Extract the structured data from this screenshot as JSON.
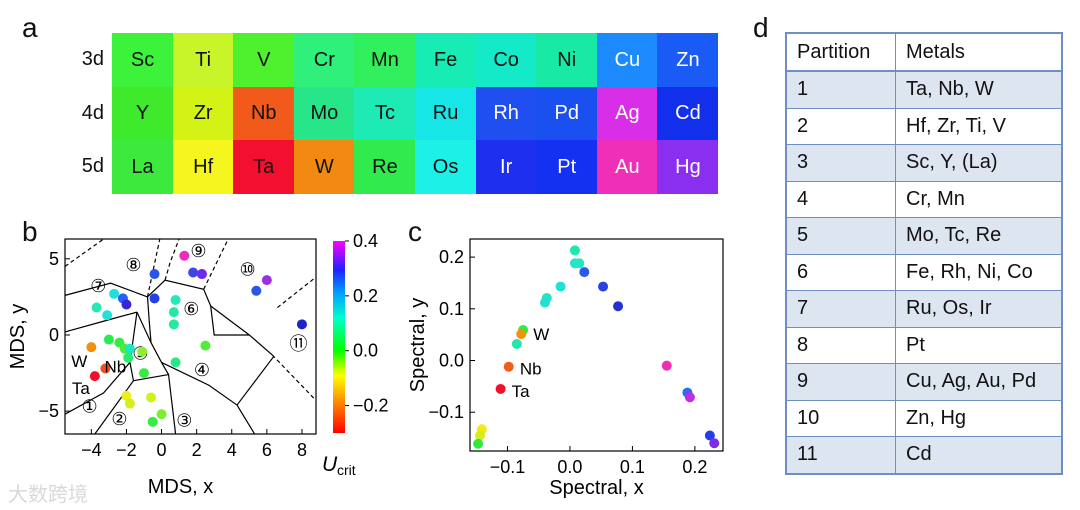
{
  "panels": {
    "a": "a",
    "b": "b",
    "c": "c",
    "d": "d"
  },
  "periodic_table": {
    "rows": [
      {
        "label": "3d",
        "cells": [
          {
            "sym": "Sc",
            "color": "#3cf23a"
          },
          {
            "sym": "Ti",
            "color": "#c8f52a"
          },
          {
            "sym": "V",
            "color": "#4ff02d"
          },
          {
            "sym": "Cr",
            "color": "#2ff07a"
          },
          {
            "sym": "Mn",
            "color": "#32ef5e"
          },
          {
            "sym": "Fe",
            "color": "#17ecb4"
          },
          {
            "sym": "Co",
            "color": "#14eac8"
          },
          {
            "sym": "Ni",
            "color": "#18eaa6"
          },
          {
            "sym": "Cu",
            "color": "#1e8aff"
          },
          {
            "sym": "Zn",
            "color": "#1a5af5"
          }
        ]
      },
      {
        "label": "4d",
        "cells": [
          {
            "sym": "Y",
            "color": "#3fe92b"
          },
          {
            "sym": "Zr",
            "color": "#d3f215"
          },
          {
            "sym": "Nb",
            "color": "#f25a1b"
          },
          {
            "sym": "Mo",
            "color": "#27e68a"
          },
          {
            "sym": "Tc",
            "color": "#1deab5"
          },
          {
            "sym": "Ru",
            "color": "#16e6e6"
          },
          {
            "sym": "Rh",
            "color": "#1f4ff0"
          },
          {
            "sym": "Pd",
            "color": "#1a4ff0"
          },
          {
            "sym": "Ag",
            "color": "#d92ee8"
          },
          {
            "sym": "Cd",
            "color": "#1230ec"
          }
        ]
      },
      {
        "label": "5d",
        "cells": [
          {
            "sym": "La",
            "color": "#3ce93d"
          },
          {
            "sym": "Hf",
            "color": "#f6f51e"
          },
          {
            "sym": "Ta",
            "color": "#f2102e"
          },
          {
            "sym": "W",
            "color": "#f28a12"
          },
          {
            "sym": "Re",
            "color": "#30ea4e"
          },
          {
            "sym": "Os",
            "color": "#1df0e6"
          },
          {
            "sym": "Ir",
            "color": "#1f2ff0"
          },
          {
            "sym": "Pt",
            "color": "#1430f0"
          },
          {
            "sym": "Au",
            "color": "#ef2fb8"
          },
          {
            "sym": "Hg",
            "color": "#8a2ef0"
          }
        ]
      }
    ]
  },
  "chart_data": [
    {
      "type": "scatter",
      "panel": "b",
      "xlabel": "MDS, x",
      "ylabel": "MDS, y",
      "xlim": [
        -5.5,
        8.8
      ],
      "ylim": [
        -6.5,
        6.3
      ],
      "xticks": [
        "−4",
        "−2",
        "0",
        "2",
        "4",
        "6",
        "8"
      ],
      "yticks": [
        "5",
        "0",
        "−5"
      ],
      "points": [
        {
          "x": -3.7,
          "y": 1.8,
          "color": "#22eab3"
        },
        {
          "x": -3.1,
          "y": 1.3,
          "color": "#23e1d9"
        },
        {
          "x": -2.7,
          "y": 2.7,
          "color": "#24dde0"
        },
        {
          "x": -2.2,
          "y": 2.4,
          "color": "#2a5ff3"
        },
        {
          "x": -2.0,
          "y": 2.0,
          "color": "#3626d8"
        },
        {
          "x": -0.4,
          "y": 4.0,
          "color": "#2a56e8"
        },
        {
          "x": -0.4,
          "y": 2.4,
          "color": "#2442e3"
        },
        {
          "x": 0.8,
          "y": 2.3,
          "color": "#23eab6"
        },
        {
          "x": 0.7,
          "y": 1.5,
          "color": "#23e6a8"
        },
        {
          "x": 0.7,
          "y": 0.7,
          "color": "#23e99a"
        },
        {
          "x": 1.8,
          "y": 4.1,
          "color": "#3d45e8"
        },
        {
          "x": 2.3,
          "y": 4.0,
          "color": "#b038e8"
        },
        {
          "x": 1.3,
          "y": 5.2,
          "color": "#ee2cbf"
        },
        {
          "x": 2.3,
          "y": 4.0,
          "color": "#6b2cef"
        },
        {
          "x": 5.4,
          "y": 2.9,
          "color": "#2a56e8"
        },
        {
          "x": 6.0,
          "y": 3.6,
          "color": "#9a30e0"
        },
        {
          "x": 8.0,
          "y": 0.7,
          "color": "#1b22c8"
        },
        {
          "x": -3.0,
          "y": -0.3,
          "color": "#28ec4f"
        },
        {
          "x": -2.4,
          "y": -0.5,
          "color": "#33ec46"
        },
        {
          "x": -2.1,
          "y": -0.9,
          "color": "#4fea3c"
        },
        {
          "x": -1.9,
          "y": -1.5,
          "color": "#26ee6f"
        },
        {
          "x": -1.8,
          "y": -0.9,
          "color": "#19e7c0"
        },
        {
          "x": -1.1,
          "y": -1.1,
          "color": "#8aee31"
        },
        {
          "x": -1.0,
          "y": -2.5,
          "color": "#37eb41"
        },
        {
          "x": 0.8,
          "y": -1.8,
          "color": "#22ea85"
        },
        {
          "x": 2.5,
          "y": -0.7,
          "color": "#54ec3c"
        },
        {
          "x": -4.0,
          "y": -0.8,
          "color": "#f2920c",
          "label": "W"
        },
        {
          "x": -3.2,
          "y": -2.2,
          "color": "#f2501a",
          "label": "Nb"
        },
        {
          "x": -3.8,
          "y": -2.7,
          "color": "#f0102a",
          "label": "Ta"
        },
        {
          "x": -2.0,
          "y": -4.0,
          "color": "#eeee19"
        },
        {
          "x": -1.8,
          "y": -4.5,
          "color": "#d6ef1b"
        },
        {
          "x": -0.6,
          "y": -4.1,
          "color": "#d0ef1b"
        },
        {
          "x": -0.5,
          "y": -5.7,
          "color": "#36eb42"
        },
        {
          "x": 0.0,
          "y": -5.2,
          "color": "#7cef2c"
        }
      ],
      "partitions": [
        "①",
        "②",
        "③",
        "④",
        "⑤",
        "⑥",
        "⑦",
        "⑧",
        "⑨",
        "⑩",
        "⑪"
      ],
      "point_labels": [
        "W",
        "Nb",
        "Ta"
      ],
      "colorbar": {
        "label_main": "U",
        "label_sub": "crit",
        "ticks": [
          "0.4",
          "0.2",
          "0.0",
          "−0.2"
        ],
        "range": [
          -0.3,
          0.4
        ]
      }
    },
    {
      "type": "scatter",
      "panel": "c",
      "xlabel": "Spectral, x",
      "ylabel": "Spectral, y",
      "xlim": [
        -0.16,
        0.245
      ],
      "ylim": [
        -0.175,
        0.235
      ],
      "xticks": [
        "−0.1",
        "0.0",
        "0.1",
        "0.2"
      ],
      "yticks": [
        "0.2",
        "0.1",
        "0.0",
        "−0.1"
      ],
      "points": [
        {
          "x": 0.008,
          "y": 0.213,
          "color": "#20e6b0"
        },
        {
          "x": 0.008,
          "y": 0.188,
          "color": "#25e3c9"
        },
        {
          "x": 0.015,
          "y": 0.188,
          "color": "#22e8c5"
        },
        {
          "x": 0.023,
          "y": 0.171,
          "color": "#2a58f0"
        },
        {
          "x": 0.053,
          "y": 0.143,
          "color": "#2c40e6"
        },
        {
          "x": 0.077,
          "y": 0.105,
          "color": "#2131d2"
        },
        {
          "x": -0.015,
          "y": 0.143,
          "color": "#20deda"
        },
        {
          "x": -0.037,
          "y": 0.121,
          "color": "#21e6c0"
        },
        {
          "x": -0.04,
          "y": 0.112,
          "color": "#25e0d2"
        },
        {
          "x": -0.075,
          "y": 0.059,
          "color": "#33ec3f"
        },
        {
          "x": -0.078,
          "y": 0.051,
          "color": "#f2930e",
          "label": "W"
        },
        {
          "x": -0.085,
          "y": 0.032,
          "color": "#22e6ab"
        },
        {
          "x": -0.098,
          "y": -0.012,
          "color": "#f05e1a",
          "label": "Nb"
        },
        {
          "x": -0.111,
          "y": -0.055,
          "color": "#f0102c",
          "label": "Ta"
        },
        {
          "x": -0.141,
          "y": -0.133,
          "color": "#f2ea14"
        },
        {
          "x": -0.144,
          "y": -0.145,
          "color": "#d6ee18"
        },
        {
          "x": -0.147,
          "y": -0.161,
          "color": "#30e93f"
        },
        {
          "x": 0.155,
          "y": -0.01,
          "color": "#ed2fb6"
        },
        {
          "x": 0.188,
          "y": -0.062,
          "color": "#2f6af1"
        },
        {
          "x": 0.192,
          "y": -0.071,
          "color": "#c22ce6"
        },
        {
          "x": 0.224,
          "y": -0.145,
          "color": "#2140e6"
        },
        {
          "x": 0.231,
          "y": -0.16,
          "color": "#7d2de8"
        }
      ],
      "point_labels": [
        "W",
        "Nb",
        "Ta"
      ]
    }
  ],
  "table": {
    "headers": [
      "Partition",
      "Metals"
    ],
    "rows": [
      [
        "1",
        "Ta, Nb, W"
      ],
      [
        "2",
        "Hf, Zr, Ti, V"
      ],
      [
        "3",
        "Sc, Y, (La)"
      ],
      [
        "4",
        "Cr, Mn"
      ],
      [
        "5",
        "Mo, Tc, Re"
      ],
      [
        "6",
        "Fe, Rh, Ni, Co"
      ],
      [
        "7",
        "Ru, Os, Ir"
      ],
      [
        "8",
        "Pt"
      ],
      [
        "9",
        "Cu, Ag, Au, Pd"
      ],
      [
        "10",
        "Zn, Hg"
      ],
      [
        "11",
        "Cd"
      ]
    ]
  },
  "watermark": "大数跨境"
}
